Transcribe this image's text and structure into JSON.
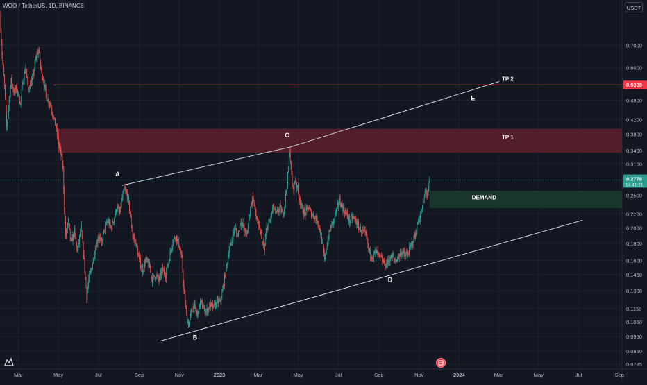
{
  "header": {
    "symbol": "WOO / TetherUS, 1D, BINANCE",
    "currency": "USDT"
  },
  "icons": {
    "logo": "tradingview-logo-icon",
    "event": "economic-event-icon"
  },
  "colors": {
    "background": "#131722",
    "up": "#26a69a",
    "down": "#ef5350",
    "tp_zone": "#5a1f2a",
    "demand_zone": "#1b3a2c",
    "trendline": "#d1d4dc",
    "tp2_line": "#f23645",
    "price_label": "#2a9d8f",
    "tp2_label": "#f23645"
  },
  "chart_data": {
    "type": "candlestick",
    "y_scale": "log",
    "ylim": [
      0.076,
      0.86
    ],
    "y_ticks": [
      "0.7000",
      "0.6000",
      "0.5338",
      "0.4800",
      "0.4200",
      "0.3800",
      "0.3400",
      "0.3100",
      "0.2500",
      "0.2200",
      "0.2000",
      "0.1800",
      "0.1600",
      "0.1450",
      "0.1300",
      "0.1150",
      "0.1050",
      "0.0950",
      "0.0860",
      "0.0785"
    ],
    "x_ticks": [
      "Mar",
      "May",
      "Jul",
      "Sep",
      "Nov",
      "2023",
      "Mar",
      "May",
      "Jul",
      "Sep",
      "Nov",
      "2024",
      "Mar",
      "May",
      "Jul",
      "Sep"
    ],
    "x_tick_dates": [
      "2022-03-01",
      "2022-05-01",
      "2022-07-01",
      "2022-09-01",
      "2022-11-01",
      "2023-01-01",
      "2023-03-01",
      "2023-05-01",
      "2023-07-01",
      "2023-09-01",
      "2023-11-01",
      "2024-01-01",
      "2024-03-01",
      "2024-05-01",
      "2024-07-01",
      "2024-09-01"
    ],
    "xlim": [
      "2022-02-01",
      "2024-09-05"
    ],
    "price_path": [
      [
        "2022-02-01",
        0.86
      ],
      [
        "2022-02-04",
        0.66
      ],
      [
        "2022-02-08",
        0.53
      ],
      [
        "2022-02-11",
        0.4
      ],
      [
        "2022-02-14",
        0.46
      ],
      [
        "2022-02-18",
        0.55
      ],
      [
        "2022-02-22",
        0.51
      ],
      [
        "2022-02-27",
        0.52
      ],
      [
        "2022-03-04",
        0.47
      ],
      [
        "2022-03-08",
        0.55
      ],
      [
        "2022-03-12",
        0.6
      ],
      [
        "2022-03-16",
        0.52
      ],
      [
        "2022-03-22",
        0.55
      ],
      [
        "2022-03-27",
        0.63
      ],
      [
        "2022-04-01",
        0.68
      ],
      [
        "2022-04-04",
        0.6
      ],
      [
        "2022-04-08",
        0.55
      ],
      [
        "2022-04-13",
        0.49
      ],
      [
        "2022-04-18",
        0.47
      ],
      [
        "2022-04-22",
        0.44
      ],
      [
        "2022-04-27",
        0.4
      ],
      [
        "2022-05-01",
        0.36
      ],
      [
        "2022-05-05",
        0.33
      ],
      [
        "2022-05-08",
        0.3
      ],
      [
        "2022-05-10",
        0.23
      ],
      [
        "2022-05-12",
        0.19
      ],
      [
        "2022-05-16",
        0.21
      ],
      [
        "2022-05-20",
        0.18
      ],
      [
        "2022-05-25",
        0.195
      ],
      [
        "2022-05-30",
        0.17
      ],
      [
        "2022-06-04",
        0.2
      ],
      [
        "2022-06-08",
        0.17
      ],
      [
        "2022-06-13",
        0.125
      ],
      [
        "2022-06-16",
        0.14
      ],
      [
        "2022-06-20",
        0.15
      ],
      [
        "2022-06-25",
        0.17
      ],
      [
        "2022-07-01",
        0.19
      ],
      [
        "2022-07-06",
        0.18
      ],
      [
        "2022-07-10",
        0.2
      ],
      [
        "2022-07-15",
        0.21
      ],
      [
        "2022-07-20",
        0.2
      ],
      [
        "2022-07-25",
        0.215
      ],
      [
        "2022-07-29",
        0.23
      ],
      [
        "2022-08-02",
        0.22
      ],
      [
        "2022-08-06",
        0.245
      ],
      [
        "2022-08-10",
        0.26
      ],
      [
        "2022-08-14",
        0.25
      ],
      [
        "2022-08-18",
        0.22
      ],
      [
        "2022-08-22",
        0.19
      ],
      [
        "2022-08-27",
        0.18
      ],
      [
        "2022-09-01",
        0.16
      ],
      [
        "2022-09-06",
        0.15
      ],
      [
        "2022-09-11",
        0.16
      ],
      [
        "2022-09-16",
        0.155
      ],
      [
        "2022-09-21",
        0.14
      ],
      [
        "2022-09-26",
        0.145
      ],
      [
        "2022-10-01",
        0.14
      ],
      [
        "2022-10-06",
        0.15
      ],
      [
        "2022-10-11",
        0.145
      ],
      [
        "2022-10-16",
        0.16
      ],
      [
        "2022-10-21",
        0.18
      ],
      [
        "2022-10-26",
        0.19
      ],
      [
        "2022-10-31",
        0.18
      ],
      [
        "2022-11-05",
        0.16
      ],
      [
        "2022-11-08",
        0.13
      ],
      [
        "2022-11-12",
        0.11
      ],
      [
        "2022-11-15",
        0.103
      ],
      [
        "2022-11-19",
        0.112
      ],
      [
        "2022-11-23",
        0.118
      ],
      [
        "2022-11-28",
        0.11
      ],
      [
        "2022-12-03",
        0.12
      ],
      [
        "2022-12-08",
        0.115
      ],
      [
        "2022-12-13",
        0.113
      ],
      [
        "2022-12-18",
        0.118
      ],
      [
        "2022-12-23",
        0.116
      ],
      [
        "2022-12-28",
        0.12
      ],
      [
        "2023-01-02",
        0.12
      ],
      [
        "2023-01-06",
        0.13
      ],
      [
        "2023-01-11",
        0.15
      ],
      [
        "2023-01-15",
        0.17
      ],
      [
        "2023-01-19",
        0.18
      ],
      [
        "2023-01-24",
        0.2
      ],
      [
        "2023-01-29",
        0.19
      ],
      [
        "2023-02-02",
        0.21
      ],
      [
        "2023-02-07",
        0.2
      ],
      [
        "2023-02-12",
        0.19
      ],
      [
        "2023-02-17",
        0.23
      ],
      [
        "2023-02-21",
        0.25
      ],
      [
        "2023-02-25",
        0.22
      ],
      [
        "2023-03-02",
        0.2
      ],
      [
        "2023-03-06",
        0.19
      ],
      [
        "2023-03-10",
        0.17
      ],
      [
        "2023-03-14",
        0.2
      ],
      [
        "2023-03-19",
        0.21
      ],
      [
        "2023-03-24",
        0.23
      ],
      [
        "2023-03-29",
        0.22
      ],
      [
        "2023-04-03",
        0.23
      ],
      [
        "2023-04-07",
        0.22
      ],
      [
        "2023-04-10",
        0.23
      ],
      [
        "2023-04-13",
        0.26
      ],
      [
        "2023-04-16",
        0.3
      ],
      [
        "2023-04-18",
        0.345
      ],
      [
        "2023-04-20",
        0.3
      ],
      [
        "2023-04-23",
        0.26
      ],
      [
        "2023-04-27",
        0.28
      ],
      [
        "2023-05-02",
        0.25
      ],
      [
        "2023-05-06",
        0.23
      ],
      [
        "2023-05-11",
        0.22
      ],
      [
        "2023-05-16",
        0.23
      ],
      [
        "2023-05-21",
        0.22
      ],
      [
        "2023-05-26",
        0.215
      ],
      [
        "2023-05-31",
        0.21
      ],
      [
        "2023-06-05",
        0.19
      ],
      [
        "2023-06-10",
        0.16
      ],
      [
        "2023-06-14",
        0.18
      ],
      [
        "2023-06-19",
        0.2
      ],
      [
        "2023-06-24",
        0.21
      ],
      [
        "2023-06-29",
        0.23
      ],
      [
        "2023-07-03",
        0.24
      ],
      [
        "2023-07-08",
        0.23
      ],
      [
        "2023-07-13",
        0.22
      ],
      [
        "2023-07-18",
        0.21
      ],
      [
        "2023-07-23",
        0.215
      ],
      [
        "2023-07-28",
        0.21
      ],
      [
        "2023-08-02",
        0.2
      ],
      [
        "2023-08-07",
        0.195
      ],
      [
        "2023-08-12",
        0.19
      ],
      [
        "2023-08-17",
        0.17
      ],
      [
        "2023-08-22",
        0.165
      ],
      [
        "2023-08-27",
        0.17
      ],
      [
        "2023-09-01",
        0.165
      ],
      [
        "2023-09-06",
        0.16
      ],
      [
        "2023-09-11",
        0.155
      ],
      [
        "2023-09-16",
        0.16
      ],
      [
        "2023-09-21",
        0.165
      ],
      [
        "2023-09-26",
        0.16
      ],
      [
        "2023-10-01",
        0.165
      ],
      [
        "2023-10-06",
        0.17
      ],
      [
        "2023-10-11",
        0.165
      ],
      [
        "2023-10-16",
        0.17
      ],
      [
        "2023-10-21",
        0.18
      ],
      [
        "2023-10-26",
        0.19
      ],
      [
        "2023-10-31",
        0.21
      ],
      [
        "2023-11-04",
        0.22
      ],
      [
        "2023-11-08",
        0.24
      ],
      [
        "2023-11-11",
        0.26
      ],
      [
        "2023-11-14",
        0.25
      ],
      [
        "2023-11-17",
        0.2778
      ]
    ],
    "annotations": {
      "trendlines": [
        {
          "from": [
            "2022-08-06",
            0.268
          ],
          "to": [
            "2023-04-18",
            0.348
          ]
        },
        {
          "from": [
            "2023-04-18",
            0.348
          ],
          "to": [
            "2024-03-02",
            0.546
          ]
        },
        {
          "from": [
            "2022-10-02",
            0.092
          ],
          "to": [
            "2024-07-07",
            0.211
          ]
        }
      ],
      "tp2_line": {
        "from": "2022-04-24",
        "price": 0.5338
      },
      "zones": [
        {
          "name": "TP 1",
          "from": "2022-05-01",
          "top": 0.395,
          "bottom": 0.335
        },
        {
          "name": "DEMAND",
          "from": "2023-11-17",
          "top": 0.258,
          "bottom": 0.229
        }
      ],
      "point_labels": [
        {
          "text": "A",
          "date": "2022-07-30",
          "price": 0.285
        },
        {
          "text": "B",
          "date": "2022-11-25",
          "price": 0.093
        },
        {
          "text": "C",
          "date": "2023-04-14",
          "price": 0.372
        },
        {
          "text": "D",
          "date": "2023-09-18",
          "price": 0.138
        },
        {
          "text": "E",
          "date": "2024-01-22",
          "price": 0.48
        }
      ],
      "zone_labels": [
        {
          "text": "TP 2",
          "date": "2024-03-15",
          "price": 0.548
        },
        {
          "text": "TP 1",
          "date": "2024-03-15",
          "price": 0.368
        },
        {
          "text": "DEMAND",
          "date": "2024-02-08",
          "price": 0.243
        }
      ]
    },
    "last_price": "0.2778",
    "countdown": "14:41:21",
    "tp2_label": "0.5338"
  }
}
